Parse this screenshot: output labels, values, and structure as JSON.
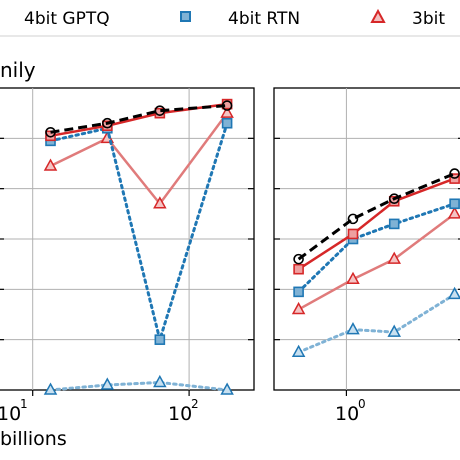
{
  "legend": {
    "entries": [
      {
        "label": "4bit GPTQ"
      },
      {
        "label": "4bit RTN"
      },
      {
        "label": "3bit"
      }
    ]
  },
  "colors": {
    "black": "#000000",
    "red": "#d62728",
    "red_light": "#e07b7b",
    "blue": "#1f77b4",
    "blue_light": "#7fb2d5",
    "grid": "#b0b0b0"
  },
  "chart_data": [
    {
      "type": "line",
      "title_fragment": "nily",
      "xlabel_fragment": "billions",
      "xscale": "log",
      "xlim": [
        6,
        260
      ],
      "ylim": [
        0,
        6
      ],
      "grid": true,
      "x_tick_labels": [
        "10",
        "1",
        "10",
        "2"
      ],
      "series": [
        {
          "name": "ref-black-dashed",
          "color": "#000000",
          "style": "dashed",
          "marker": "circle",
          "x": [
            13,
            30,
            65,
            175
          ],
          "y": [
            5.12,
            5.3,
            5.55,
            5.65
          ]
        },
        {
          "name": "red-solid",
          "color": "#d62728",
          "style": "solid",
          "marker": "square",
          "x": [
            13,
            30,
            65,
            175
          ],
          "y": [
            5.05,
            5.25,
            5.5,
            5.68
          ]
        },
        {
          "name": "blue-square-dotted",
          "color": "#1f77b4",
          "style": "dotted",
          "marker": "square",
          "x": [
            13,
            30,
            65,
            175
          ],
          "y": [
            4.95,
            5.2,
            1.0,
            5.3
          ]
        },
        {
          "name": "red-triangle-light",
          "color": "#e07b7b",
          "style": "solid",
          "marker": "triangle",
          "x": [
            13,
            30,
            65,
            175
          ],
          "y": [
            4.45,
            5.0,
            3.7,
            5.5
          ]
        },
        {
          "name": "blue-triangle-light-dotted",
          "color": "#7fb2d5",
          "style": "dotted",
          "marker": "triangle",
          "x": [
            13,
            30,
            65,
            175
          ],
          "y": [
            0.0,
            0.1,
            0.15,
            0.0
          ]
        }
      ]
    },
    {
      "type": "line",
      "xscale": "log",
      "xlim": [
        0.35,
        5.5
      ],
      "ylim": [
        0,
        6
      ],
      "grid": true,
      "x_tick_labels": [
        "10",
        "0"
      ],
      "series": [
        {
          "name": "ref-black-dashed",
          "color": "#000000",
          "style": "dashed",
          "marker": "circle",
          "x": [
            0.5,
            1.1,
            2.0,
            4.8
          ],
          "y": [
            2.6,
            3.4,
            3.8,
            4.3
          ]
        },
        {
          "name": "red-solid",
          "color": "#d62728",
          "style": "solid",
          "marker": "square",
          "x": [
            0.5,
            1.1,
            2.0,
            4.8
          ],
          "y": [
            2.4,
            3.1,
            3.75,
            4.2
          ]
        },
        {
          "name": "blue-square-dotted",
          "color": "#1f77b4",
          "style": "dotted",
          "marker": "square",
          "x": [
            0.5,
            1.1,
            2.0,
            4.8
          ],
          "y": [
            1.95,
            3.0,
            3.3,
            3.7
          ]
        },
        {
          "name": "red-triangle-light",
          "color": "#e07b7b",
          "style": "solid",
          "marker": "triangle",
          "x": [
            0.5,
            1.1,
            2.0,
            4.8
          ],
          "y": [
            1.6,
            2.2,
            2.6,
            3.5
          ]
        },
        {
          "name": "blue-triangle-light-dotted",
          "color": "#7fb2d5",
          "style": "dotted",
          "marker": "triangle",
          "x": [
            0.5,
            1.1,
            2.0,
            4.8
          ],
          "y": [
            0.75,
            1.2,
            1.15,
            1.9
          ]
        }
      ]
    }
  ]
}
